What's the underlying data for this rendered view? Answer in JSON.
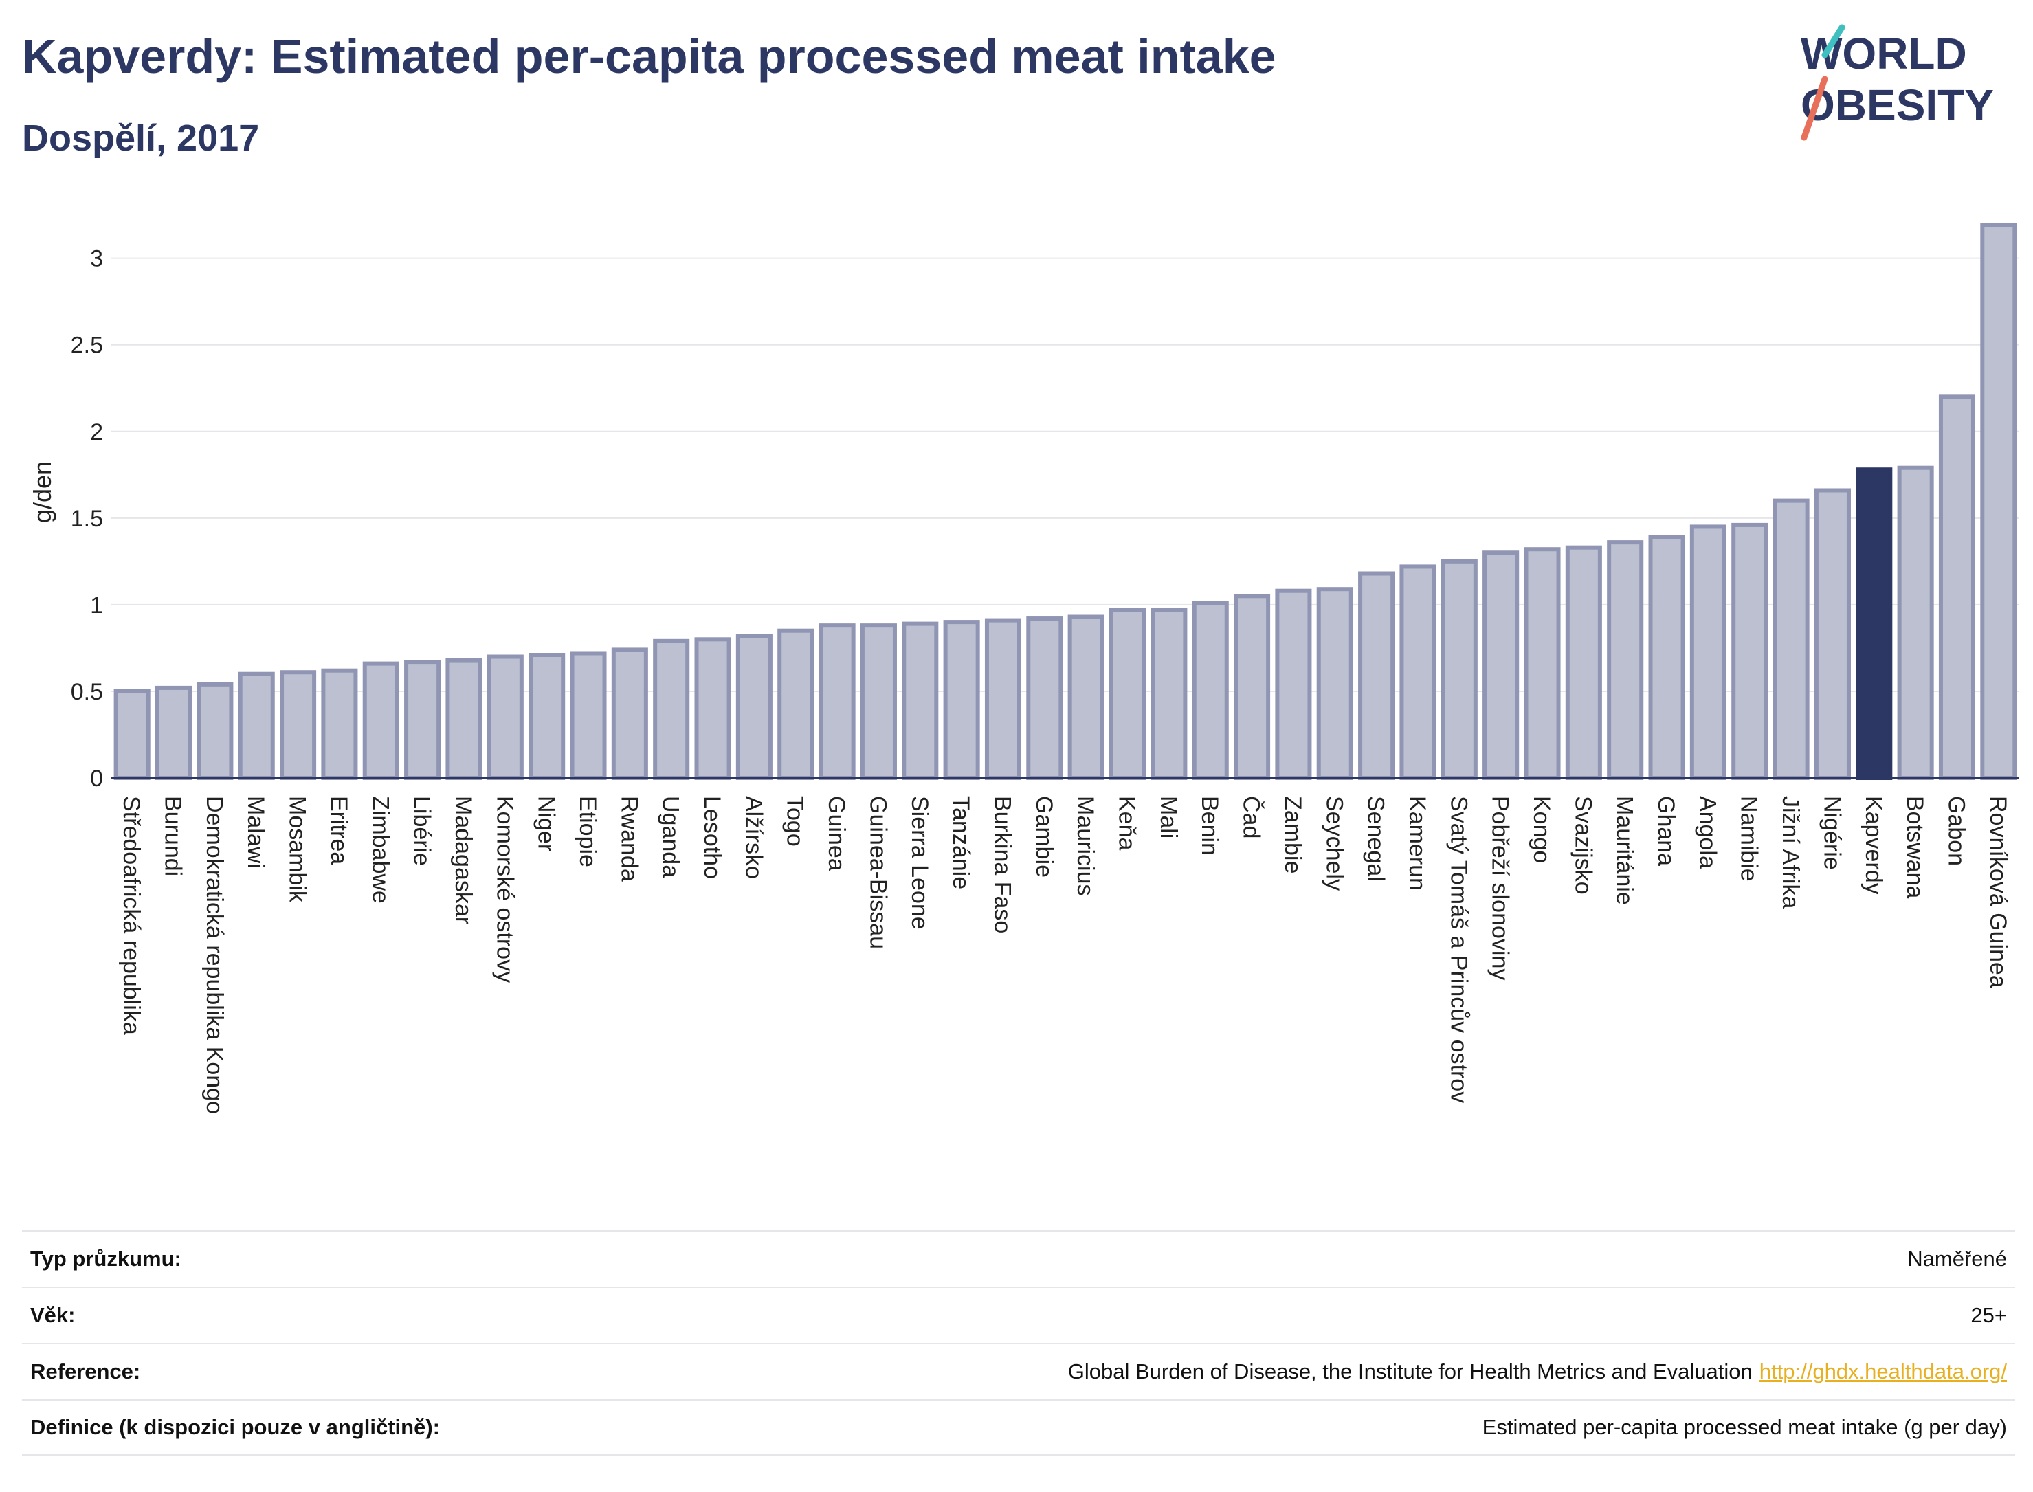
{
  "header": {
    "title": "Kapverdy: Estimated per-capita processed meat intake",
    "subtitle": "Dospělí, 2017"
  },
  "logo": {
    "line1": "WORLD",
    "line2": "OBESITY"
  },
  "colors": {
    "bar": "#bcc0d0",
    "bar_border": "#8f95b2",
    "highlight": "#2c3763",
    "grid": "#e6e6ea",
    "text": "#2c3763"
  },
  "chart_data": {
    "type": "bar",
    "ylabel": "g/den",
    "ylim": [
      0,
      3.3
    ],
    "yticks": [
      0,
      0.5,
      1,
      1.5,
      2,
      2.5,
      3
    ],
    "ytick_labels": [
      "0",
      "0.5",
      "1",
      "1.5",
      "2",
      "2.5",
      "3"
    ],
    "highlight": "Kapverdy",
    "categories": [
      "Středoafrická republika",
      "Burundi",
      "Demokratická republika Kongo",
      "Malawi",
      "Mosambik",
      "Eritrea",
      "Zimbabwe",
      "Libérie",
      "Madagaskar",
      "Komorské ostrovy",
      "Niger",
      "Etiopie",
      "Rwanda",
      "Uganda",
      "Lesotho",
      "Alžírsko",
      "Togo",
      "Guinea",
      "Guinea-Bissau",
      "Sierra Leone",
      "Tanzánie",
      "Burkina Faso",
      "Gambie",
      "Mauricius",
      "Keňa",
      "Mali",
      "Benin",
      "Čad",
      "Zambie",
      "Seychely",
      "Senegal",
      "Kamerun",
      "Svatý Tomáš a Princův ostrov",
      "Pobřeží slonoviny",
      "Kongo",
      "Svazijsko",
      "Mauritánie",
      "Ghana",
      "Angola",
      "Namibie",
      "Jižní Afrika",
      "Nigérie",
      "Kapverdy",
      "Botswana",
      "Gabon",
      "Rovníková Guinea"
    ],
    "values": [
      0.5,
      0.52,
      0.54,
      0.6,
      0.61,
      0.62,
      0.66,
      0.67,
      0.68,
      0.7,
      0.71,
      0.72,
      0.74,
      0.79,
      0.8,
      0.82,
      0.85,
      0.88,
      0.88,
      0.89,
      0.9,
      0.91,
      0.92,
      0.93,
      0.97,
      0.97,
      1.01,
      1.05,
      1.08,
      1.09,
      1.18,
      1.22,
      1.25,
      1.3,
      1.32,
      1.33,
      1.36,
      1.39,
      1.45,
      1.46,
      1.6,
      1.66,
      1.78,
      1.79,
      2.2,
      3.19
    ]
  },
  "info": [
    {
      "label": "Typ průzkumu:",
      "value": "Naměřené",
      "link": ""
    },
    {
      "label": "Věk:",
      "value": "25+",
      "link": ""
    },
    {
      "label": "Reference:",
      "value": "Global Burden of Disease, the Institute for Health Metrics and Evaluation",
      "link": "http://ghdx.healthdata.org/"
    },
    {
      "label": "Definice (k dispozici pouze v angličtině):",
      "value": "Estimated per-capita processed meat intake (g per day)",
      "link": ""
    }
  ]
}
